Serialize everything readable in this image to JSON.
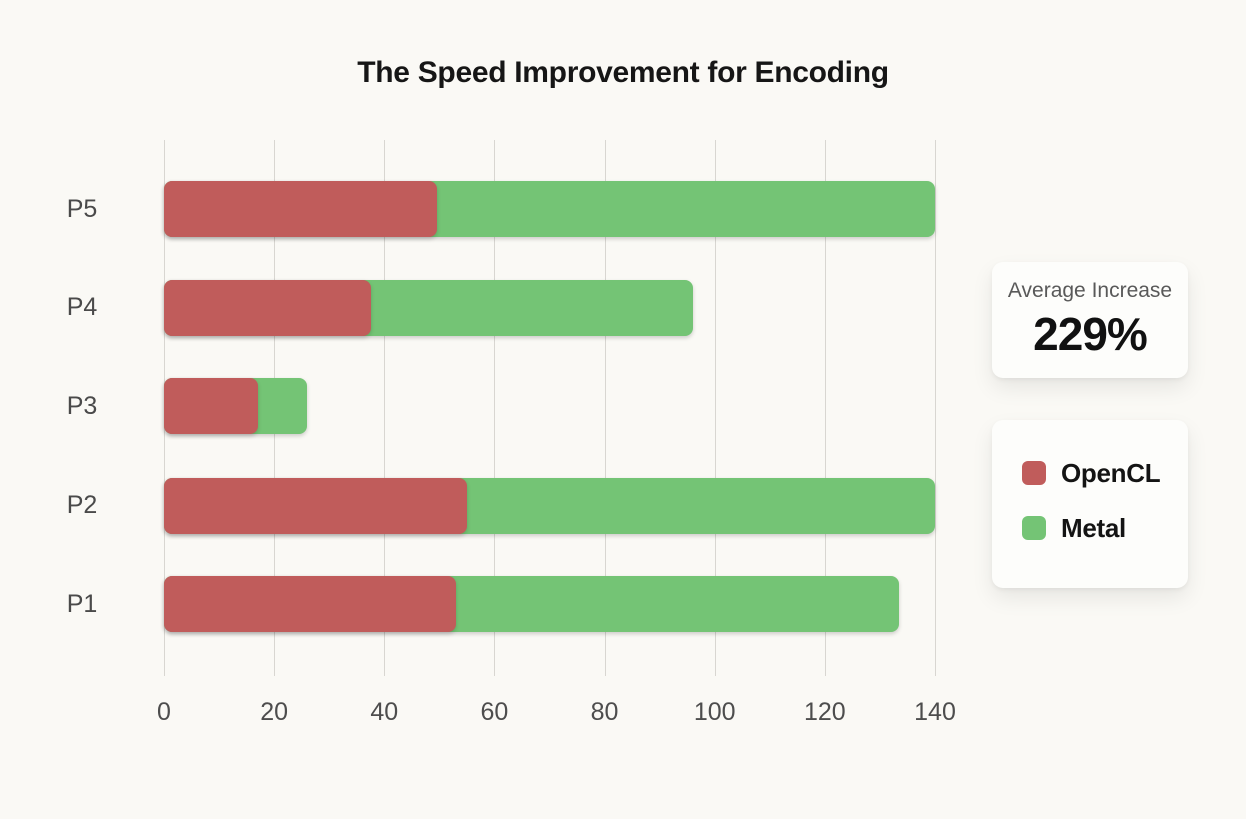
{
  "title": "The Speed Improvement for Encoding",
  "chart_data": {
    "type": "bar",
    "orientation": "horizontal",
    "stacked": true,
    "title": "The Speed Improvement for Encoding",
    "categories": [
      "P1",
      "P2",
      "P3",
      "P4",
      "P5"
    ],
    "row_order_top_to_bottom": [
      "P5",
      "P4",
      "P3",
      "P2",
      "P1"
    ],
    "series": [
      {
        "name": "OpenCL",
        "color": "#C05C5B",
        "values": [
          53,
          55,
          17,
          37.5,
          49.5
        ]
      },
      {
        "name": "Metal",
        "color": "#74C475",
        "values": [
          80.5,
          85,
          9,
          58.5,
          90.5
        ]
      }
    ],
    "totals": [
      133.5,
      140,
      26,
      96,
      140
    ],
    "xlim": [
      0,
      140
    ],
    "xticks": [
      0,
      20,
      40,
      60,
      80,
      100,
      120,
      140
    ],
    "grid": true,
    "legend_position": "right-card"
  },
  "stat_card": {
    "label": "Average Increase",
    "value": "229%"
  },
  "legend": {
    "items": [
      {
        "label": "OpenCL",
        "color": "#C05C5B"
      },
      {
        "label": "Metal",
        "color": "#74C475"
      }
    ]
  },
  "colors": {
    "background": "#FAF9F5",
    "card_background": "#FDFDFB",
    "gridline": "#D8D6D1",
    "axis_text": "#4D4D4D",
    "title_text": "#161616",
    "opencl_red": "#C05C5B",
    "metal_green": "#74C475"
  }
}
